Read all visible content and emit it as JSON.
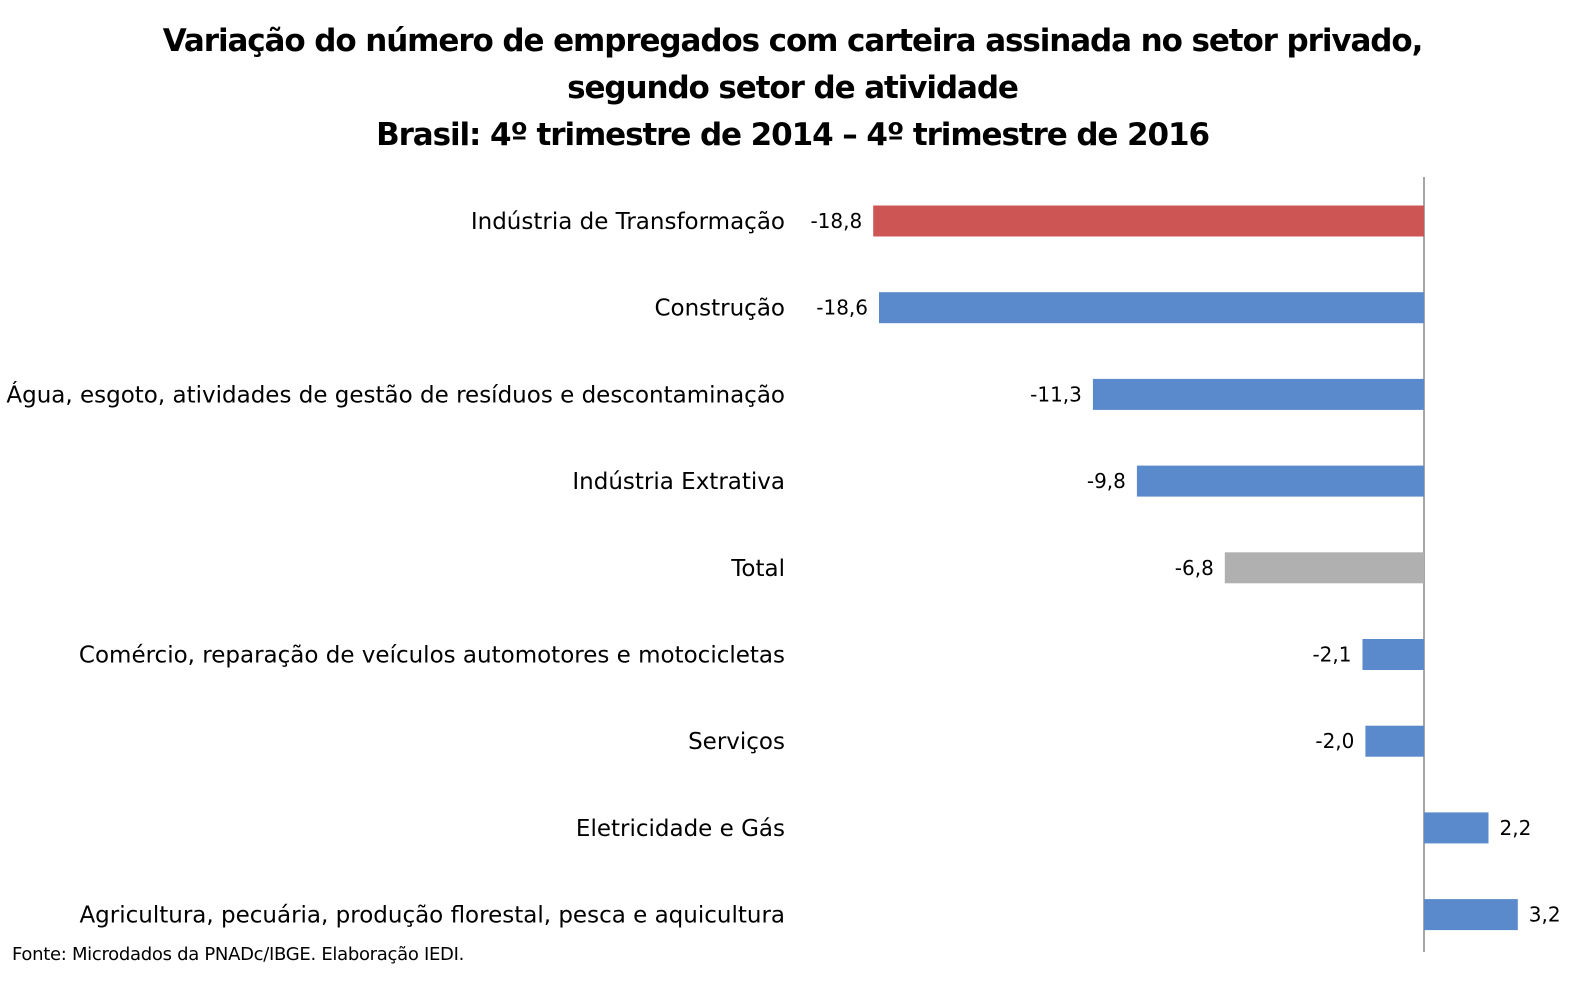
{
  "chart_data": {
    "type": "bar",
    "orientation": "horizontal",
    "title_lines": [
      "Variação do número de empregados com carteira assinada no setor privado,",
      "segundo setor de atividade",
      "Brasil: 4º trimestre de 2014 – 4º trimestre de 2016"
    ],
    "categories": [
      "Indústria de Transformação",
      "Construção",
      "Água, esgoto, atividades de gestão de resíduos e descontaminação",
      "Indústria Extrativa",
      "Total",
      "Comércio, reparação de veículos automotores e motocicletas",
      "Serviços",
      "Eletricidade e Gás",
      "Agricultura, pecuária, produção florestal, pesca e aquicultura"
    ],
    "values": [
      -18.8,
      -18.6,
      -11.3,
      -9.8,
      -6.8,
      -2.1,
      -2.0,
      2.2,
      3.2
    ],
    "value_labels": [
      "-18,8",
      "-18,6",
      "-11,3",
      "-9,8",
      "-6,8",
      "-2,1",
      "-2,0",
      "2,2",
      "3,2"
    ],
    "colors": [
      "#CD5654",
      "#5A8ACB",
      "#5A8ACB",
      "#5A8ACB",
      "#B0B0B0",
      "#5A8ACB",
      "#5A8ACB",
      "#5A8ACB",
      "#5A8ACB"
    ],
    "axis_line_color": "#A6A6A6",
    "grid": false,
    "legend": "none",
    "source": "Fonte: Microdados da PNADc/IBGE. Elaboração IEDI."
  }
}
